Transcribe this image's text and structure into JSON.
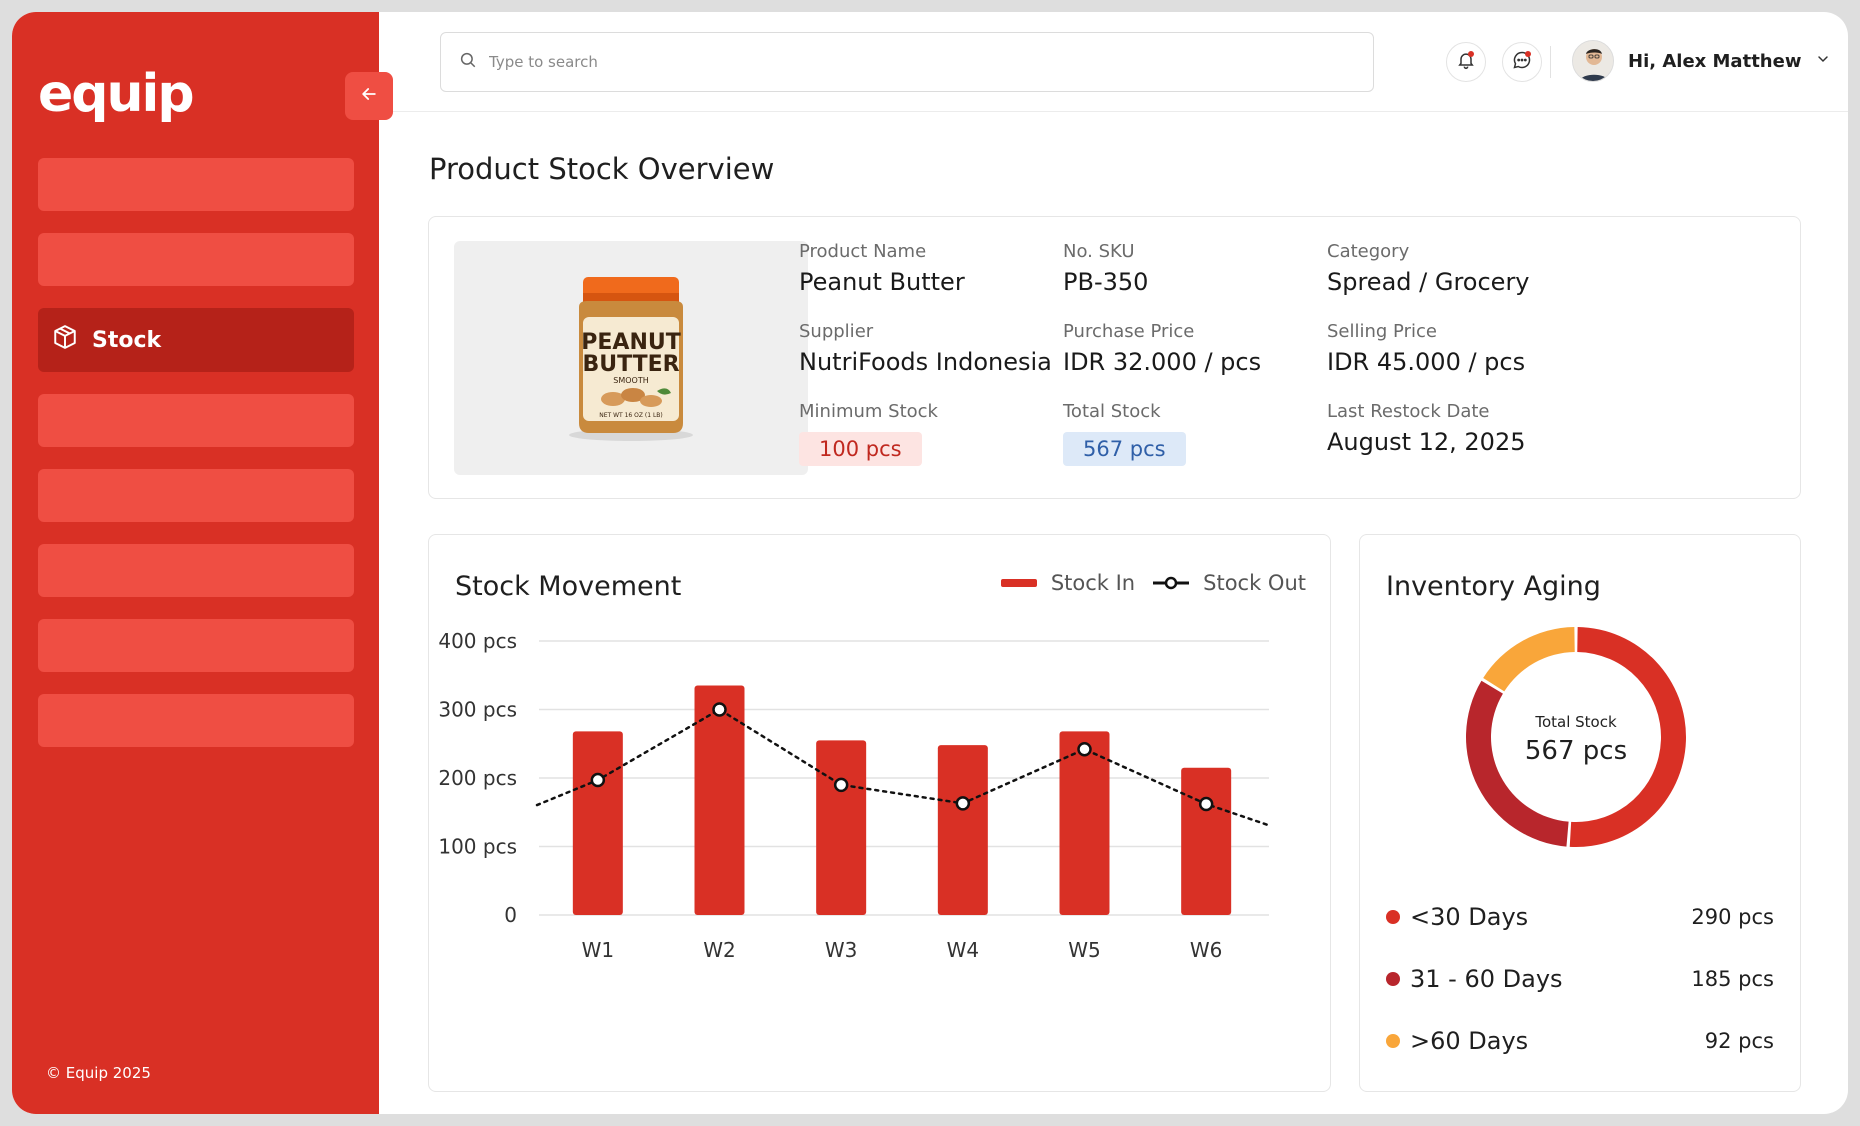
{
  "app": {
    "logo": "equip",
    "copyright": "© Equip 2025"
  },
  "sidebar": {
    "active_label": "Stock"
  },
  "header": {
    "search_placeholder": "Type to search",
    "greeting": "Hi, Alex Matthew"
  },
  "page": {
    "title": "Product Stock Overview"
  },
  "product": {
    "image_label": [
      "PEANUT",
      "BUTTER",
      "SMOOTH",
      "NET WT 16 OZ (1 LB)"
    ],
    "name_label": "Product Name",
    "name": "Peanut Butter",
    "sku_label": "No. SKU",
    "sku": "PB-350",
    "category_label": "Category",
    "category": "Spread / Grocery",
    "supplier_label": "Supplier",
    "supplier": "NutriFoods Indonesia",
    "purchase_label": "Purchase Price",
    "purchase": "IDR 32.000 / pcs",
    "selling_label": "Selling Price",
    "selling": "IDR 45.000 / pcs",
    "min_label": "Minimum Stock",
    "min": "100 pcs",
    "total_label": "Total Stock",
    "total": "567 pcs",
    "restock_label": "Last Restock Date",
    "restock": "August 12, 2025"
  },
  "movement": {
    "title": "Stock Movement",
    "legend_in": "Stock In",
    "legend_out": "Stock Out"
  },
  "chart_data": [
    {
      "type": "bar",
      "title": "Stock Movement",
      "categories": [
        "W1",
        "W2",
        "W3",
        "W4",
        "W5",
        "W6"
      ],
      "y_tick_labels": [
        "400 pcs",
        "300 pcs",
        "200 pcs",
        "100 pcs",
        "0"
      ],
      "ylim": [
        0,
        400
      ],
      "grid": true,
      "legend_position": "top-right",
      "series": [
        {
          "name": "Stock In",
          "type": "bar",
          "color": "#d93025",
          "values": [
            268,
            335,
            255,
            248,
            268,
            215
          ]
        },
        {
          "name": "Stock Out",
          "type": "line",
          "style": "dotted",
          "color": "#111111",
          "values": [
            197,
            300,
            190,
            163,
            242,
            162
          ]
        }
      ]
    },
    {
      "type": "pie",
      "title": "Inventory Aging",
      "center_label": "Total Stock",
      "center_value": "567 pcs",
      "categories": [
        "<30 Days",
        "31 - 60 Days",
        ">60 Days"
      ],
      "values": [
        290,
        185,
        92
      ],
      "value_labels": [
        "290 pcs",
        "185 pcs",
        "92 pcs"
      ],
      "colors": [
        "#d93025",
        "#b8262c",
        "#f9a63a"
      ]
    }
  ],
  "aging": {
    "title": "Inventory Aging"
  }
}
